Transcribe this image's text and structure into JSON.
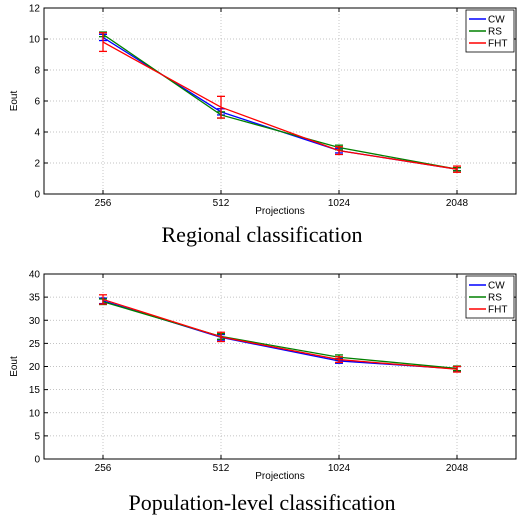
{
  "chart_data": [
    {
      "type": "line",
      "caption": "Regional classification",
      "xlabel": "Projections",
      "ylabel": "Eout",
      "categories": [
        "256",
        "512",
        "1024",
        "2048"
      ],
      "ylim": [
        0,
        12
      ],
      "yticks": [
        0,
        2,
        4,
        6,
        8,
        10,
        12
      ],
      "grid": true,
      "legend_position": "top-right",
      "series": [
        {
          "name": "CW",
          "color": "#0000ff",
          "values": [
            10.1,
            5.3,
            2.8,
            1.6
          ],
          "errors": [
            0.2,
            0.2,
            0.15,
            0.1
          ]
        },
        {
          "name": "RS",
          "color": "#008000",
          "values": [
            10.3,
            5.1,
            3.0,
            1.6
          ],
          "errors": [
            0.15,
            0.2,
            0.15,
            0.1
          ]
        },
        {
          "name": "FHT",
          "color": "#ff0000",
          "values": [
            9.8,
            5.6,
            2.8,
            1.6
          ],
          "errors": [
            0.6,
            0.7,
            0.25,
            0.2
          ]
        }
      ]
    },
    {
      "type": "line",
      "caption": "Population-level classification",
      "xlabel": "Projections",
      "ylabel": "Eout",
      "categories": [
        "256",
        "512",
        "1024",
        "2048"
      ],
      "ylim": [
        0,
        40
      ],
      "yticks": [
        0,
        5,
        10,
        15,
        20,
        25,
        30,
        35,
        40
      ],
      "grid": true,
      "legend_position": "top-right",
      "series": [
        {
          "name": "CW",
          "color": "#0000ff",
          "values": [
            34.2,
            26.3,
            21.2,
            19.5
          ],
          "errors": [
            0.6,
            0.6,
            0.5,
            0.5
          ]
        },
        {
          "name": "RS",
          "color": "#008000",
          "values": [
            34.0,
            26.5,
            22.0,
            19.6
          ],
          "errors": [
            0.6,
            0.6,
            0.5,
            0.5
          ]
        },
        {
          "name": "FHT",
          "color": "#ff0000",
          "values": [
            34.5,
            26.4,
            21.5,
            19.4
          ],
          "errors": [
            1.0,
            1.0,
            0.6,
            0.6
          ]
        }
      ]
    }
  ]
}
